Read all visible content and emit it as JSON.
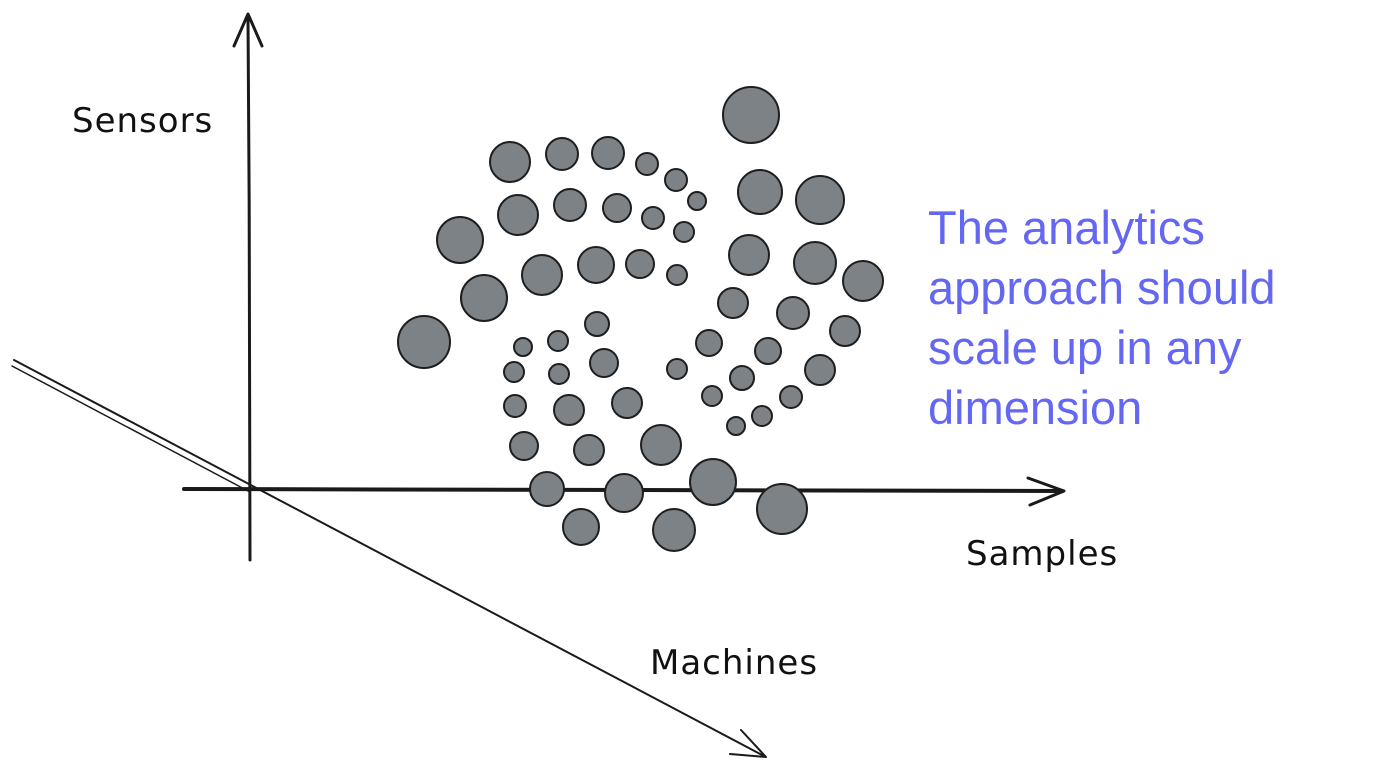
{
  "axes": {
    "vertical_label": "Sensors",
    "horizontal_label": "Samples",
    "diagonal_label": "Machines"
  },
  "callout": {
    "lines": [
      "The analytics",
      "approach should",
      "scale up in any",
      "dimension"
    ],
    "color": "#6467f2"
  },
  "styles": {
    "dot_fill": "#7d8287",
    "dot_stroke": "#1e1e1e",
    "axis_color": "#1a1a1a"
  }
}
